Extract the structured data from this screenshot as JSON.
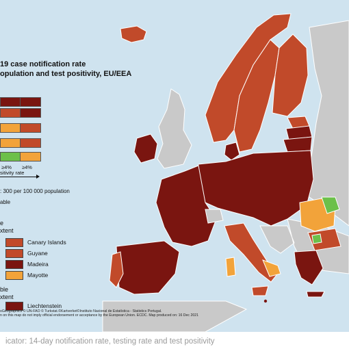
{
  "title_line1": "19 case notification rate",
  "title_line2": "opulation and test positivity, EU/EEA",
  "axis_ticks": [
    "≥4%",
    "≥4%"
  ],
  "axis_label": "sitivity rate",
  "threshold_note": ": 300 per 100 000 population",
  "unavailable_note": "able",
  "section1": {
    "line1": "e",
    "line2": "xtent"
  },
  "regions": [
    {
      "label": "Canary Islands",
      "color": "#c14a2a"
    },
    {
      "label": "Guyane",
      "color": "#c14a2a"
    },
    {
      "label": "Madeira",
      "color": "#7a1510"
    },
    {
      "label": "Mayotte",
      "color": "#f2a33a"
    }
  ],
  "section2": {
    "line1": "ble",
    "line2": "xtent"
  },
  "small_states": [
    {
      "label": "Liechtenstein",
      "color": "#7a1510"
    }
  ],
  "credits_line1": "oGeographics © UN-FAO © Turkstat.©Kartverket©Instituto Nacional de Estatística - Statistics Portugal.",
  "credits_line2": "n on this map do not imply official endorsement or acceptance by the European Union. ECDC. Map produced on: 16 Dec 2021",
  "caption": "icator: 14-day notification rate, testing rate and test positivity",
  "colors": {
    "dark_red": "#7a1510",
    "red": "#c14a2a",
    "orange": "#f2a33a",
    "green": "#6cc04a",
    "grey": "#c9c9c9",
    "sea": "#cfe3ef"
  }
}
